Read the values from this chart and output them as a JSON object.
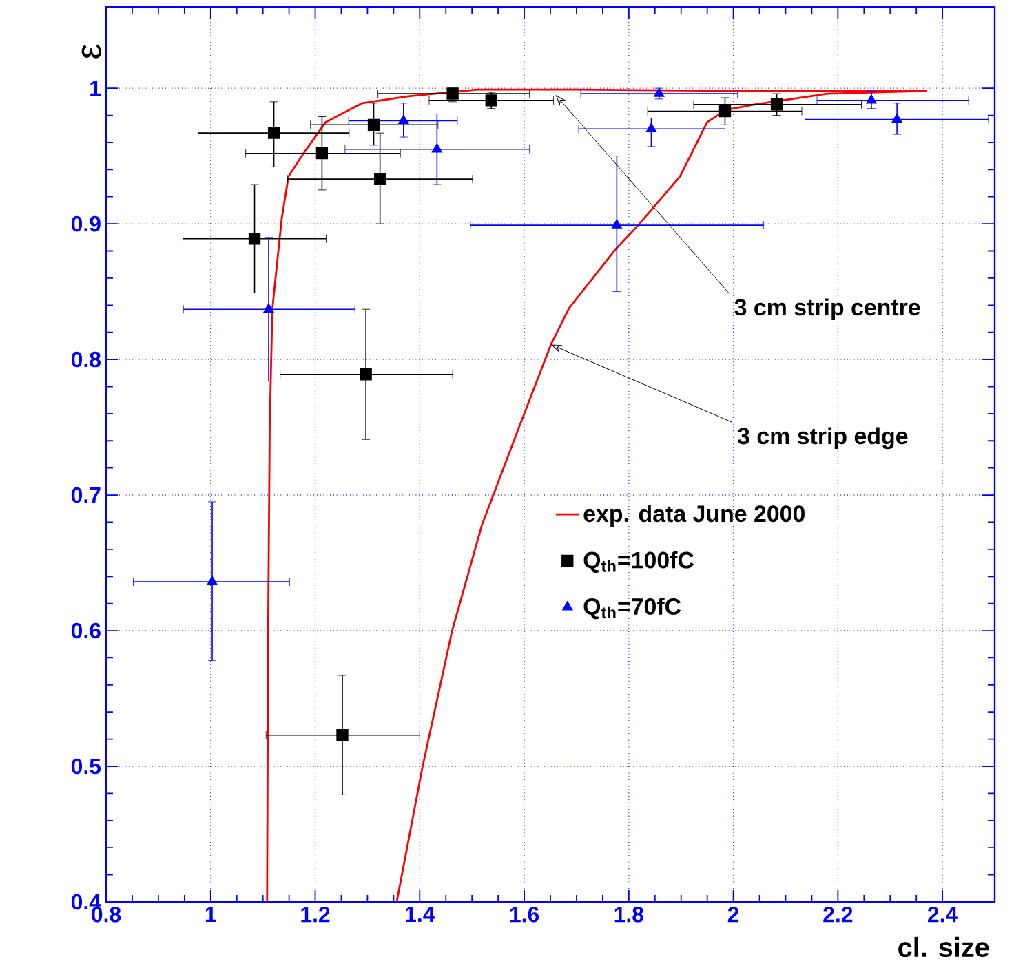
{
  "chart_data": {
    "type": "scatter",
    "xlabel": "cl. size",
    "ylabel": "ε",
    "xlim": [
      0.8,
      2.5
    ],
    "ylim": [
      0.4,
      1.06
    ],
    "xticks": [
      0.8,
      1,
      1.2,
      1.4,
      1.6,
      1.8,
      2,
      2.2,
      2.4
    ],
    "yticks": [
      0.4,
      0.5,
      0.6,
      0.7,
      0.8,
      0.9,
      1
    ],
    "grid": true,
    "legend": "right",
    "annotations": [
      {
        "text": "3 cm strip centre",
        "x": 1.66,
        "y": 0.995
      },
      {
        "text": "3 cm strip edge",
        "x": 1.651,
        "y": 0.811
      }
    ],
    "series": [
      {
        "name": "exp. data June 2000",
        "type": "line",
        "color": "#ff0000",
        "marker": "none",
        "line_style": "solid",
        "x": [
          1.108,
          1.11,
          1.113,
          1.118,
          1.136,
          1.149,
          1.176,
          1.22,
          1.29,
          1.378,
          1.51,
          1.7,
          2.0,
          2.369
        ],
        "values": [
          0.4,
          0.6,
          0.75,
          0.837,
          0.904,
          0.935,
          0.951,
          0.975,
          0.989,
          0.994,
          0.999,
          0.999,
          0.998,
          0.998
        ]
      },
      {
        "type": "line",
        "color": "#ff0000",
        "marker": "none",
        "line_style": "solid",
        "x": [
          1.356,
          1.405,
          1.462,
          1.519,
          1.59,
          1.651,
          1.686,
          1.774,
          1.818,
          1.898,
          1.95,
          1.986,
          2.04,
          2.18,
          2.369
        ],
        "values": [
          0.4,
          0.499,
          0.6,
          0.678,
          0.75,
          0.811,
          0.838,
          0.881,
          0.899,
          0.935,
          0.975,
          0.984,
          0.988,
          0.996,
          0.998
        ]
      },
      {
        "name": "Q$_{th}$=100fC",
        "color": "#000000",
        "marker": "square",
        "x": [
          1.121,
          1.213,
          1.312,
          1.324,
          1.084,
          1.297,
          1.463,
          1.537,
          1.984,
          2.083,
          1.252
        ],
        "values": [
          0.967,
          0.952,
          0.973,
          0.933,
          0.889,
          0.789,
          0.996,
          0.991,
          0.983,
          0.988,
          0.523
        ],
        "xerrors": [
          [
            0.976,
            1.265
          ],
          [
            1.067,
            1.363
          ],
          [
            1.191,
            1.435
          ],
          [
            1.147,
            1.501
          ],
          [
            0.947,
            1.221
          ],
          [
            1.133,
            1.463
          ],
          [
            1.32,
            1.61
          ],
          [
            1.418,
            1.656
          ],
          [
            1.836,
            2.131
          ],
          [
            1.924,
            2.245
          ],
          [
            1.106,
            1.4
          ]
        ],
        "errors": [
          [
            0.942,
            0.99
          ],
          [
            0.925,
            0.979
          ],
          [
            0.958,
            0.989
          ],
          [
            0.9,
            0.967
          ],
          [
            0.849,
            0.929
          ],
          [
            0.741,
            0.837
          ],
          [
            0.99,
            1.0
          ],
          [
            0.985,
            0.997
          ],
          [
            0.973,
            0.993
          ],
          [
            0.98,
            0.996
          ],
          [
            0.479,
            0.567
          ]
        ]
      },
      {
        "name": "Q$_{th}$=70fC",
        "color": "#0000ff",
        "marker": "triangle",
        "x": [
          1.111,
          1.369,
          1.433,
          1.777,
          1.858,
          1.843,
          2.264,
          2.313,
          1.003
        ],
        "values": [
          0.837,
          0.976,
          0.955,
          0.899,
          0.996,
          0.97,
          0.991,
          0.977,
          0.636
        ],
        "xerrors": [
          [
            0.948,
            1.276
          ],
          [
            1.264,
            1.472
          ],
          [
            1.257,
            1.61
          ],
          [
            1.497,
            2.058
          ],
          [
            1.708,
            2.008
          ],
          [
            1.704,
            1.984
          ],
          [
            2.16,
            2.45
          ],
          [
            2.137,
            2.488
          ],
          [
            0.852,
            1.151
          ]
        ],
        "errors": [
          [
            0.784,
            0.89
          ],
          [
            0.964,
            0.989
          ],
          [
            0.929,
            0.981
          ],
          [
            0.85,
            0.95
          ],
          [
            0.992,
            1.0
          ],
          [
            0.957,
            0.978
          ],
          [
            0.985,
            0.998
          ],
          [
            0.966,
            0.989
          ],
          [
            0.578,
            0.695
          ]
        ]
      }
    ]
  }
}
